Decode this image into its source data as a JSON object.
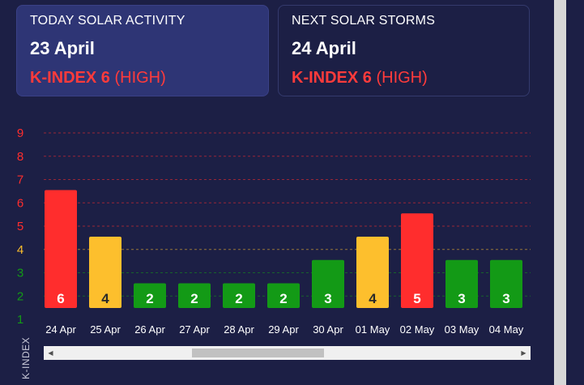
{
  "today": {
    "label": "TODAY SOLAR ACTIVITY",
    "date": "23 April",
    "kindex_label": "K-INDEX 6",
    "severity": "(HIGH)"
  },
  "next": {
    "label": "NEXT SOLAR STORMS",
    "date": "24 April",
    "kindex_label": "K-INDEX 6",
    "severity": "(HIGH)"
  },
  "colors": {
    "high": "#ff2d2d",
    "moderate": "#fdbf2d",
    "low": "#139a16",
    "background": "#1c1f45"
  },
  "chart_data": {
    "type": "bar",
    "categories": [
      "24 Apr",
      "25 Apr",
      "26 Apr",
      "27 Apr",
      "28 Apr",
      "29 Apr",
      "30 Apr",
      "01 May",
      "02 May",
      "03 May",
      "04 May"
    ],
    "values": [
      6,
      4,
      2,
      2,
      2,
      2,
      3,
      4,
      5,
      3,
      3
    ],
    "ylabel": "K-INDEX",
    "ylim": [
      1,
      9
    ],
    "yticks": [
      1,
      2,
      3,
      4,
      5,
      6,
      7,
      8,
      9
    ],
    "grid": true
  },
  "scrollbar": {
    "left_arrow": "◀",
    "right_arrow": "▶"
  }
}
